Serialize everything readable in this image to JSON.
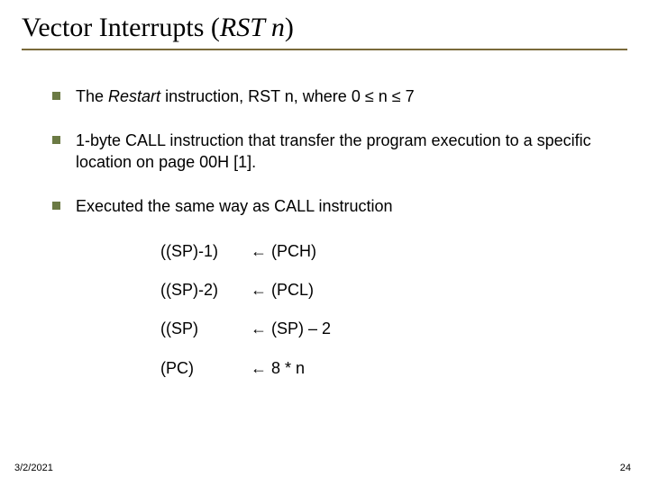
{
  "title": {
    "prefix": "Vector Interrupts (",
    "rstn": "RST n",
    "suffix": ")"
  },
  "bullets": [
    {
      "pre": "The ",
      "italic": "Restart",
      "post": " instruction, RST n, where 0 ≤ n ≤ 7"
    },
    {
      "text": "1-byte CALL instruction that transfer the program execution to a specific location on page 00H [1]."
    },
    {
      "text": "Executed the same way as CALL instruction"
    }
  ],
  "ops": [
    {
      "lhs": "((SP)-1)",
      "arrow": "←",
      "rhs": "(PCH)"
    },
    {
      "lhs": "((SP)-2)",
      "arrow": "←",
      "rhs": "(PCL)"
    },
    {
      "lhs": "((SP)",
      "arrow": "←",
      "rhs": "(SP) – 2"
    },
    {
      "lhs": "(PC)",
      "arrow": "←",
      "rhs": "8 * n"
    }
  ],
  "footer": {
    "date": "3/2/2021",
    "page": "24"
  },
  "colors": {
    "rule": "#7a6a3a",
    "bullet_square": "#6b7a44",
    "text": "#000000",
    "background": "#ffffff"
  }
}
